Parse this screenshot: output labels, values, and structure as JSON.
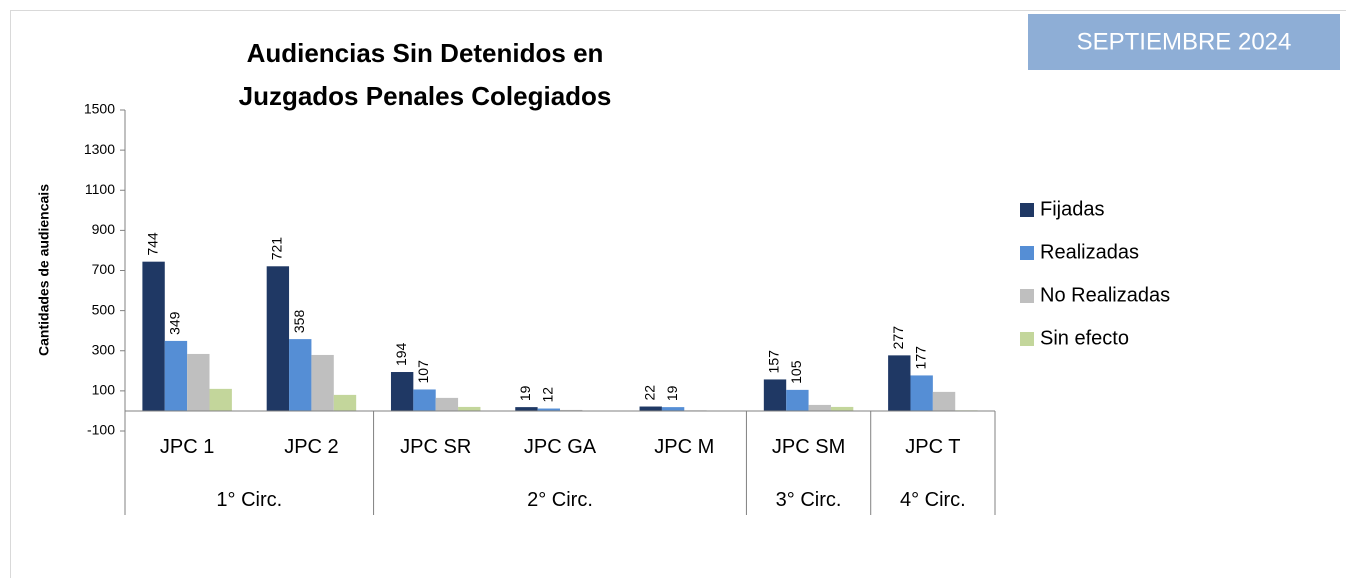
{
  "chart_data": {
    "type": "bar",
    "title": [
      "Audiencias Sin Detenidos en",
      "Juzgados Penales Colegiados"
    ],
    "badge": "SEPTIEMBRE 2024",
    "y_label": "Cantidades de audiencais",
    "categories": [
      "JPC 1",
      "JPC 2",
      "JPC SR",
      "JPC GA",
      "JPC M",
      "JPC SM",
      "JPC T"
    ],
    "groups": [
      {
        "label": "1° Circ.",
        "span": 2
      },
      {
        "label": "2° Circ.",
        "span": 3
      },
      {
        "label": "3° Circ.",
        "span": 1
      },
      {
        "label": "4° Circ.",
        "span": 1
      }
    ],
    "series": [
      {
        "name": "Fijadas",
        "color": "#1f3864",
        "data_labels": true,
        "values": [
          744,
          721,
          194,
          19,
          22,
          157,
          277
        ]
      },
      {
        "name": "Realizadas",
        "color": "#558ed5",
        "data_labels": true,
        "values": [
          349,
          358,
          107,
          12,
          19,
          105,
          177
        ]
      },
      {
        "name": "No Realizadas",
        "color": "#bfbfbf",
        "data_labels": false,
        "values": [
          284,
          279,
          65,
          5,
          3,
          30,
          95
        ]
      },
      {
        "name": "Sin efecto",
        "color": "#c3d69b",
        "data_labels": false,
        "values": [
          110,
          80,
          20,
          0,
          0,
          20,
          3
        ]
      }
    ],
    "ylim": [
      -100,
      1500
    ],
    "yticks": [
      -100,
      100,
      300,
      500,
      700,
      900,
      1100,
      1300,
      1500
    ],
    "legend": "right"
  }
}
